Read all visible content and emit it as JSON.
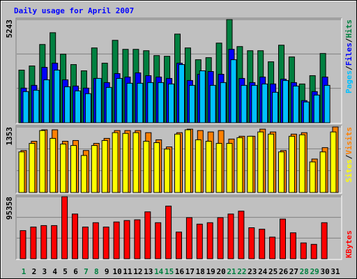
{
  "title": "Daily usage for April 2007",
  "legend_separator": "/",
  "chart_data": [
    {
      "type": "bar",
      "ylim": [
        0,
        5243
      ],
      "yticks": [
        5243
      ],
      "series": [
        {
          "name": "Hits",
          "color": "#008040",
          "values": [
            2674,
            2886,
            3976,
            4575,
            3484,
            2956,
            2639,
            3801,
            3026,
            4188,
            3730,
            3730,
            3660,
            3413,
            3378,
            4504,
            3801,
            3202,
            3308,
            4047,
            5243,
            3871,
            3660,
            3660,
            3097,
            3941,
            3343,
            1971,
            2393,
            3519,
            null
          ]
        },
        {
          "name": "Files",
          "color": "#0000ff",
          "values": [
            1760,
            1900,
            2815,
            3026,
            2182,
            1865,
            1760,
            2252,
            2041,
            2498,
            2323,
            2534,
            2393,
            2323,
            2252,
            3026,
            2147,
            2463,
            2604,
            2463,
            3730,
            2252,
            2041,
            2323,
            1971,
            2217,
            2041,
            1126,
            1584,
            2323,
            null
          ]
        },
        {
          "name": "Pages",
          "color": "#00c0ff",
          "values": [
            1584,
            1654,
            2182,
            2674,
            1830,
            1619,
            1478,
            2252,
            1795,
            2252,
            2006,
            2006,
            2041,
            2041,
            1971,
            2956,
            1900,
            2639,
            1900,
            2041,
            3202,
            1900,
            1900,
            1971,
            1548,
            2147,
            1865,
            1056,
            1408,
            1900,
            null
          ]
        }
      ]
    },
    {
      "type": "bar",
      "ylim": [
        0,
        1353
      ],
      "yticks": [
        1353
      ],
      "series": [
        {
          "name": "Visits",
          "color": "#ff8000",
          "values": [
            867,
            1058,
            1294,
            1294,
            1058,
            1073,
            867,
            1014,
            1117,
            1279,
            1279,
            1279,
            1235,
            1088,
            941,
            1235,
            1308,
            1279,
            1250,
            1279,
            1103,
            1161,
            1161,
            1308,
            1250,
            867,
            1205,
            1235,
            691,
            926,
            1353
          ]
        },
        {
          "name": "Sites",
          "color": "#ffff00",
          "values": [
            838,
            1014,
            1279,
            1117,
            1000,
            970,
            764,
            970,
            1073,
            1235,
            1220,
            1235,
            1058,
            1029,
            897,
            1205,
            1294,
            1088,
            1058,
            1014,
            1014,
            1132,
            1161,
            1250,
            1205,
            838,
            1161,
            1191,
            632,
            838,
            1250
          ]
        }
      ]
    },
    {
      "type": "bar",
      "ylim": [
        0,
        95358
      ],
      "yticks": [
        95358
      ],
      "categories": [
        "1",
        "2",
        "3",
        "4",
        "5",
        "6",
        "7",
        "8",
        "9",
        "10",
        "11",
        "12",
        "13",
        "14",
        "15",
        "16",
        "17",
        "18",
        "19",
        "20",
        "21",
        "22",
        "23",
        "24",
        "25",
        "26",
        "27",
        "28",
        "29",
        "30",
        "31"
      ],
      "category_colors": [
        "#008040",
        "#000000",
        "#000000",
        "#000000",
        "#000000",
        "#000000",
        "#008040",
        "#008040",
        "#000000",
        "#000000",
        "#000000",
        "#000000",
        "#000000",
        "#008040",
        "#008040",
        "#000000",
        "#000000",
        "#000000",
        "#000000",
        "#000000",
        "#008040",
        "#008040",
        "#000000",
        "#000000",
        "#000000",
        "#000000",
        "#000000",
        "#008040",
        "#008040",
        "#000000",
        "#000000"
      ],
      "series": [
        {
          "name": "KBytes",
          "color": "#ff0000",
          "values": [
            43250,
            48796,
            51014,
            51014,
            95358,
            68758,
            48796,
            55450,
            48796,
            56559,
            58777,
            59886,
            72085,
            55450,
            80957,
            41033,
            63213,
            53232,
            55450,
            63213,
            68758,
            73194,
            47687,
            45469,
            33270,
            60995,
            39924,
            24398,
            22180,
            55450,
            null
          ]
        }
      ]
    }
  ]
}
